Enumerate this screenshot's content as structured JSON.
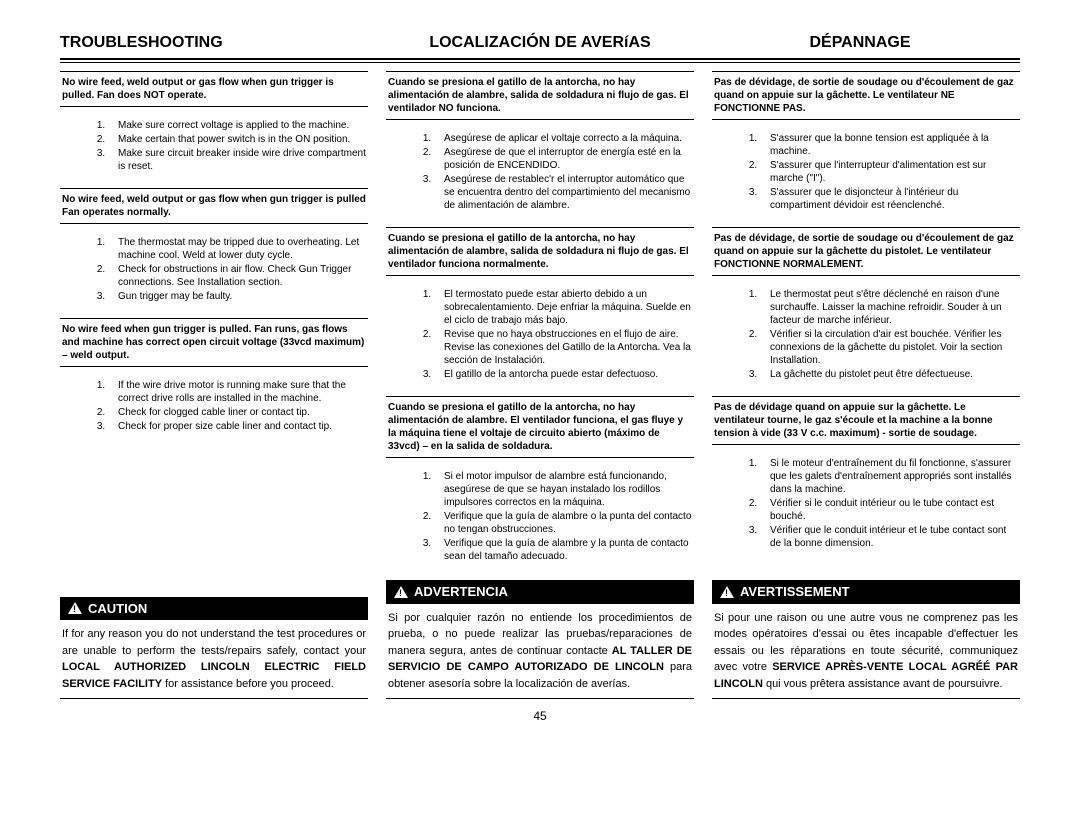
{
  "page_number": "45",
  "headers": {
    "en": "TROUBLESHOOTING",
    "es": "LOCALIZACIÓN DE AVERíAS",
    "fr": "DÉPANNAGE"
  },
  "columns": {
    "en": {
      "problems": [
        {
          "title": "No wire feed, weld output or gas flow when gun trigger is pulled. Fan does NOT operate.",
          "steps": [
            "Make sure correct voltage is applied to the machine.",
            "Make certain that power switch is in the ON position.",
            "Make sure circuit breaker inside wire drive compartment is reset."
          ]
        },
        {
          "title": "No wire feed, weld output or gas flow when gun trigger is pulled Fan operates normally.",
          "steps": [
            "The thermostat may be tripped due to overheating. Let machine cool. Weld at lower duty cycle.",
            "Check for obstructions in air flow. Check Gun Trigger connections. See Installation section.",
            "Gun trigger may be faulty."
          ]
        },
        {
          "title": "No wire feed when gun trigger is pulled. Fan runs, gas flows and machine has correct open circuit voltage (33vcd maximum) – weld output.",
          "steps": [
            "If the wire drive motor is running make sure that the correct drive rolls are installed in the machine.",
            "Check for clogged cable liner or contact tip.",
            "Check for proper size cable liner and contact tip."
          ]
        }
      ],
      "warning_label": "CAUTION",
      "warning_text_pre": "If for any reason you do not understand the test procedures or are unable to perform the tests/repairs safely, contact your ",
      "warning_text_bold": "LOCAL AUTHORIZED LINCOLN ELECTRIC FIELD SERVICE FACILITY",
      "warning_text_post": " for assistance before you proceed."
    },
    "es": {
      "problems": [
        {
          "title": "Cuando se presiona el gatillo de la antorcha, no hay alimentación de alambre, salida de soldadura ni flujo de gas.  El ventilador NO funciona.",
          "steps": [
            "Asegúrese de aplicar el voltaje correcto a la máquina.",
            "Asegúrese de que el interruptor de energía esté en la posición de ENCENDIDO.",
            "Asegúrese de restablec'r el interruptor automático que se encuentra dentro del compartimiento del mecanismo de alimentación de alambre."
          ]
        },
        {
          "title": "Cuando se presiona el gatillo de la antorcha, no hay alimentación de alambre, salida de soldadura ni flujo de gas.  El ventilador funciona normalmente.",
          "steps": [
            "El termostato puede estar abierto debido a un sobrecalentamiento.  Deje enfriar la máquina. Suelde en el ciclo de trabajo más bajo.",
            "Revise que no haya obstrucciones en el flujo de aire. Revise las conexiones del Gatillo de la Antorcha.  Vea la sección de Instalación.",
            "El gatillo de la antorcha puede estar defectuoso."
          ]
        },
        {
          "title": "Cuando se presiona el gatillo de la antorcha, no hay alimentación de alambre.  El ventilador funciona, el gas fluye y la máquina tiene el voltaje de circuito abierto (máximo de 33vcd) – en la salida de soldadura.",
          "steps": [
            "Si el motor impulsor de alambre está funcionando, asegúrese de que se hayan instalado los rodillos impulsores correctos en la máquina.",
            "Verifique que la guía de alambre o la punta del contacto no tengan obstrucciones.",
            "Verifique que la guía de alambre y la punta de contacto sean del tamaño adecuado."
          ]
        }
      ],
      "warning_label": "ADVERTENCIA",
      "warning_text_pre": "Si por cualquier razón no entiende los procedimientos de prueba, o no puede realizar las pruebas/reparaciones de manera segura, antes de continuar contacte ",
      "warning_text_bold": "AL TALLER DE SERVICIO DE CAMPO AUTORIZADO DE LINCOLN",
      "warning_text_post": " para obtener asesoría sobre la localización de averías."
    },
    "fr": {
      "problems": [
        {
          "title": "Pas de dévidage, de sortie de soudage ou d'écoulement de gaz quand on appuie sur la gâchette.  Le ventilateur NE FONCTIONNE PAS.",
          "steps": [
            "S'assurer que la bonne tension est appliquée à la machine.",
            "S'assurer que l'interrupteur d'alimentation est sur marche (\"I\").",
            "S'assurer que le disjoncteur à l'intérieur du compartiment dévidoir est réenclenché."
          ]
        },
        {
          "title": "Pas de dévidage, de sortie de soudage ou d'écoulement de gaz quand on appuie sur la gâchette du pistolet.  Le ventilateur FONCTIONNE NORMALEMENT.",
          "steps": [
            "Le thermostat peut s'être déclenché en raison d'une surchauffe.  Laisser la machine refroidir.  Souder à un facteur de marche inférieur.",
            "Vérifier si la circulation d'air est bouchée.  Vérifier les connexions de la gâchette du pistolet.  Voir la section Installation.",
            "La gâchette du pistolet peut être défectueuse."
          ]
        },
        {
          "title": "Pas de dévidage quand on appuie sur la gâchette.  Le ventilateur tourne, le gaz s'écoule et la machine a la bonne tension à vide (33 V c.c. maximum) - sortie de soudage.",
          "steps": [
            "Si le moteur d'entraînement du fil fonctionne, s'assurer que les galets d'entraînement appropriés sont installés dans la machine.",
            "Vérifier si le conduit intérieur ou le tube contact est bouché.",
            "Vérifier que le conduit intérieur et le tube contact sont de la bonne dimension."
          ]
        }
      ],
      "warning_label": "AVERTISSEMENT",
      "warning_text_pre": "Si pour une raison ou une autre vous ne comprenez pas les modes opératoires d'essai ou êtes incapable d'effectuer les essais ou les réparations en toute sécurité, communiquez avec votre ",
      "warning_text_bold": "SERVICE APRÈS-VENTE LOCAL AGRÉÉ PAR LINCOLN",
      "warning_text_post": " qui vous prêtera assistance avant de poursuivre."
    }
  }
}
